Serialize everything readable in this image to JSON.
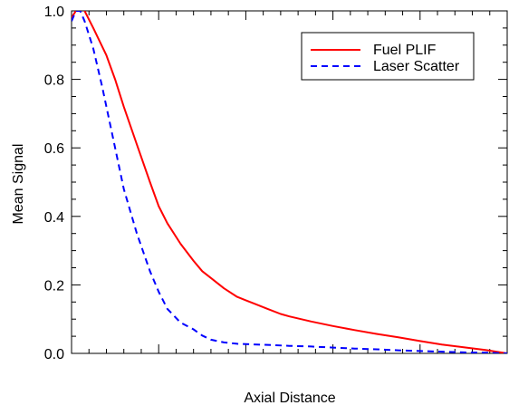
{
  "chart_data": {
    "type": "line",
    "title": "",
    "xlabel": "Axial Distance",
    "ylabel": "Mean Signal",
    "xlim": [
      0,
      1
    ],
    "ylim": [
      0,
      1.0
    ],
    "yticks": [
      0.0,
      0.2,
      0.4,
      0.6,
      0.8,
      1.0
    ],
    "ytick_labels": [
      "0.0",
      "0.2",
      "0.4",
      "0.6",
      "0.8",
      "1.0"
    ],
    "x_tick_labels_shown": false,
    "grid": false,
    "legend_position": "top-right",
    "series": [
      {
        "name": "Fuel PLIF",
        "color": "#ff0000",
        "style": "solid",
        "x": [
          0.0,
          0.01,
          0.02,
          0.03,
          0.05,
          0.08,
          0.1,
          0.12,
          0.15,
          0.18,
          0.2,
          0.22,
          0.25,
          0.28,
          0.3,
          0.32,
          0.35,
          0.38,
          0.4,
          0.42,
          0.45,
          0.48,
          0.5,
          0.55,
          0.6,
          0.65,
          0.7,
          0.75,
          0.8,
          0.85,
          0.9,
          0.95,
          1.0
        ],
        "y": [
          0.98,
          1.0,
          1.02,
          1.0,
          0.95,
          0.87,
          0.8,
          0.72,
          0.61,
          0.5,
          0.43,
          0.38,
          0.32,
          0.27,
          0.24,
          0.22,
          0.19,
          0.165,
          0.155,
          0.145,
          0.13,
          0.115,
          0.108,
          0.093,
          0.08,
          0.068,
          0.057,
          0.047,
          0.036,
          0.026,
          0.018,
          0.01,
          0.0
        ]
      },
      {
        "name": "Laser Scatter",
        "color": "#0000ff",
        "style": "dashed",
        "x": [
          0.0,
          0.01,
          0.02,
          0.03,
          0.05,
          0.07,
          0.1,
          0.12,
          0.15,
          0.18,
          0.2,
          0.22,
          0.25,
          0.28,
          0.3,
          0.32,
          0.35,
          0.38,
          0.4,
          0.45,
          0.5,
          0.55,
          0.6,
          0.65,
          0.7,
          0.75,
          0.8,
          0.85,
          0.9,
          0.95,
          1.0
        ],
        "y": [
          0.97,
          1.0,
          1.0,
          0.97,
          0.89,
          0.78,
          0.6,
          0.48,
          0.35,
          0.24,
          0.18,
          0.13,
          0.09,
          0.07,
          0.052,
          0.04,
          0.032,
          0.028,
          0.027,
          0.025,
          0.022,
          0.02,
          0.017,
          0.014,
          0.012,
          0.009,
          0.007,
          0.005,
          0.003,
          0.002,
          0.0
        ]
      }
    ]
  }
}
